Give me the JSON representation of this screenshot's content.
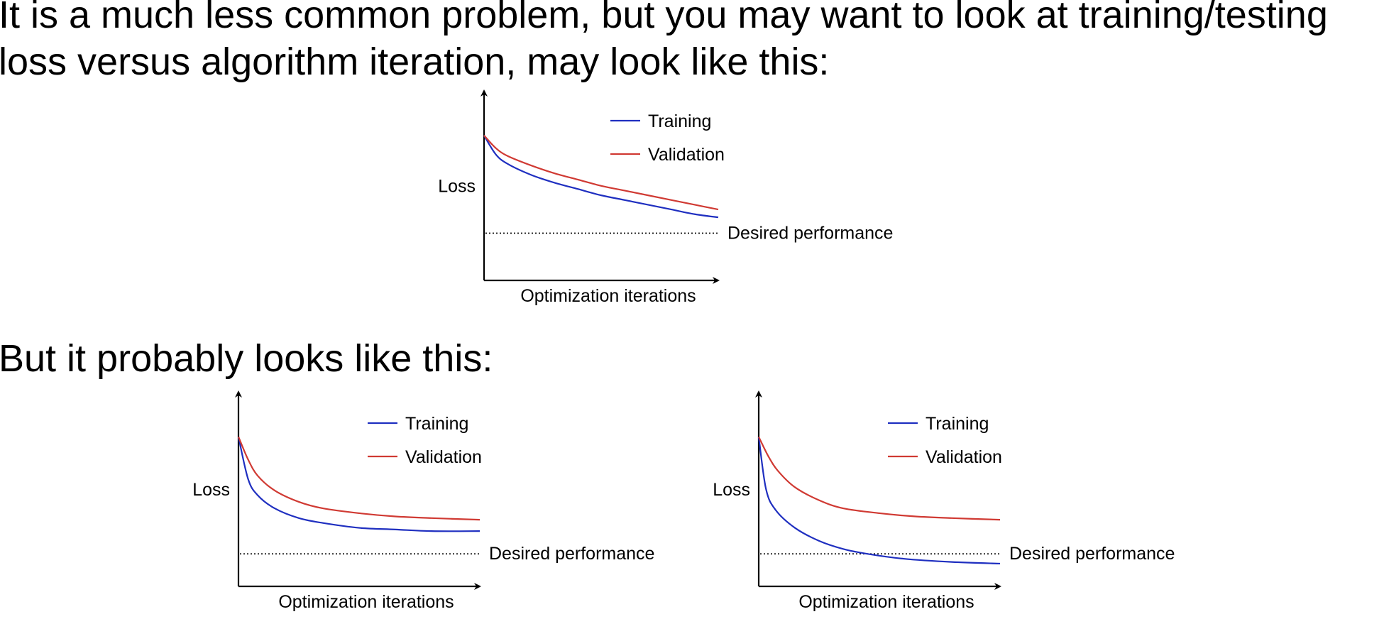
{
  "slide": {
    "intro_text": "It is a much less common problem, but you may want to look at training/testing loss versus algorithm iteration, may look like this:",
    "second_text": "But it probably looks like this:"
  },
  "chart_data": [
    {
      "type": "line",
      "xlabel": "Optimization iterations",
      "ylabel": "Loss",
      "reference_line": {
        "label": "Desired performance",
        "y": 0.3,
        "style": "dotted"
      },
      "legend": {
        "placement": "top-center"
      },
      "ylim": [
        0,
        1
      ],
      "series": [
        {
          "name": "Training",
          "color": "#1f2fc0",
          "x": [
            0,
            0.05,
            0.1,
            0.2,
            0.3,
            0.4,
            0.5,
            0.6,
            0.7,
            0.8,
            0.9,
            1.0
          ],
          "y": [
            0.92,
            0.8,
            0.74,
            0.67,
            0.62,
            0.58,
            0.54,
            0.51,
            0.48,
            0.45,
            0.42,
            0.4
          ]
        },
        {
          "name": "Validation",
          "color": "#d03a33",
          "x": [
            0,
            0.05,
            0.1,
            0.2,
            0.3,
            0.4,
            0.5,
            0.6,
            0.7,
            0.8,
            0.9,
            1.0
          ],
          "y": [
            0.92,
            0.84,
            0.79,
            0.73,
            0.68,
            0.64,
            0.6,
            0.57,
            0.54,
            0.51,
            0.48,
            0.45
          ]
        }
      ]
    },
    {
      "type": "line",
      "xlabel": "Optimization iterations",
      "ylabel": "Loss",
      "reference_line": {
        "label": "Desired performance",
        "y": 0.2,
        "style": "dotted"
      },
      "legend": {
        "placement": "top-center"
      },
      "ylim": [
        0,
        1
      ],
      "series": [
        {
          "name": "Training",
          "color": "#1f2fc0",
          "x": [
            0,
            0.04,
            0.08,
            0.15,
            0.25,
            0.35,
            0.5,
            0.65,
            0.8,
            1.0
          ],
          "y": [
            0.92,
            0.66,
            0.56,
            0.48,
            0.42,
            0.39,
            0.36,
            0.35,
            0.34,
            0.34
          ]
        },
        {
          "name": "Validation",
          "color": "#d03a33",
          "x": [
            0,
            0.04,
            0.08,
            0.15,
            0.25,
            0.35,
            0.5,
            0.65,
            0.8,
            1.0
          ],
          "y": [
            0.92,
            0.78,
            0.68,
            0.59,
            0.52,
            0.48,
            0.45,
            0.43,
            0.42,
            0.41
          ]
        }
      ]
    },
    {
      "type": "line",
      "xlabel": "Optimization iterations",
      "ylabel": "Loss",
      "reference_line": {
        "label": "Desired performance",
        "y": 0.2,
        "style": "dotted"
      },
      "legend": {
        "placement": "top-center"
      },
      "ylim": [
        0,
        1
      ],
      "series": [
        {
          "name": "Training",
          "color": "#1f2fc0",
          "x": [
            0,
            0.03,
            0.07,
            0.15,
            0.25,
            0.35,
            0.45,
            0.6,
            0.8,
            1.0
          ],
          "y": [
            0.92,
            0.6,
            0.47,
            0.36,
            0.28,
            0.23,
            0.2,
            0.17,
            0.15,
            0.14
          ]
        },
        {
          "name": "Validation",
          "color": "#d03a33",
          "x": [
            0,
            0.04,
            0.08,
            0.15,
            0.25,
            0.35,
            0.5,
            0.65,
            0.8,
            1.0
          ],
          "y": [
            0.92,
            0.8,
            0.71,
            0.61,
            0.53,
            0.48,
            0.45,
            0.43,
            0.42,
            0.41
          ]
        }
      ]
    }
  ]
}
